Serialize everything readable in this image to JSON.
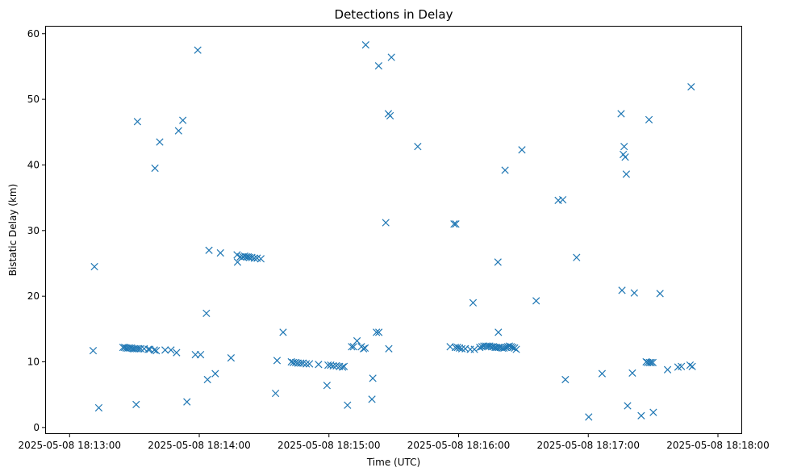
{
  "chart_data": {
    "type": "scatter",
    "title": "Detections in Delay",
    "xlabel": "Time (UTC)",
    "ylabel": "Bistatic Delay (km)",
    "x_unit": "seconds after 2025-05-08 18:12:00",
    "xlim": [
      48.7,
      371.2
    ],
    "ylim": [
      -1.0,
      61.2
    ],
    "x_ticks": [
      {
        "value": 60,
        "label": "2025-05-08 18:13:00"
      },
      {
        "value": 120,
        "label": "2025-05-08 18:14:00"
      },
      {
        "value": 180,
        "label": "2025-05-08 18:15:00"
      },
      {
        "value": 240,
        "label": "2025-05-08 18:16:00"
      },
      {
        "value": 300,
        "label": "2025-05-08 18:17:00"
      },
      {
        "value": 360,
        "label": "2025-05-08 18:18:00"
      }
    ],
    "y_ticks": [
      {
        "value": 0,
        "label": "0"
      },
      {
        "value": 10,
        "label": "10"
      },
      {
        "value": 20,
        "label": "20"
      },
      {
        "value": 30,
        "label": "30"
      },
      {
        "value": 40,
        "label": "40"
      },
      {
        "value": 50,
        "label": "50"
      },
      {
        "value": 60,
        "label": "60"
      }
    ],
    "marker": "x",
    "color": "#1f77b4",
    "points": [
      [
        70.9,
        11.7
      ],
      [
        71.5,
        24.5
      ],
      [
        73.5,
        3.0
      ],
      [
        84.7,
        12.2
      ],
      [
        85.5,
        12.2
      ],
      [
        86.2,
        12.1
      ],
      [
        87.0,
        12.1
      ],
      [
        87.8,
        12.1
      ],
      [
        88.6,
        12.1
      ],
      [
        89.4,
        12.0
      ],
      [
        90.2,
        12.0
      ],
      [
        91.1,
        12.0
      ],
      [
        92.0,
        12.0
      ],
      [
        92.9,
        12.0
      ],
      [
        94.5,
        12.0
      ],
      [
        96.4,
        11.9
      ],
      [
        97.1,
        11.9
      ],
      [
        99.2,
        11.8
      ],
      [
        100.1,
        11.7
      ],
      [
        90.8,
        3.5
      ],
      [
        91.4,
        46.6
      ],
      [
        99.5,
        39.5
      ],
      [
        101.7,
        43.5
      ],
      [
        104.2,
        11.8
      ],
      [
        106.9,
        11.8
      ],
      [
        109.5,
        11.4
      ],
      [
        110.4,
        45.2
      ],
      [
        112.4,
        46.8
      ],
      [
        114.3,
        3.9
      ],
      [
        118.2,
        11.1
      ],
      [
        120.6,
        11.1
      ],
      [
        119.3,
        57.5
      ],
      [
        123.3,
        17.4
      ],
      [
        124.5,
        27.0
      ],
      [
        123.8,
        7.3
      ],
      [
        127.4,
        8.2
      ],
      [
        129.8,
        26.6
      ],
      [
        134.7,
        10.6
      ],
      [
        137.5,
        26.3
      ],
      [
        137.7,
        25.2
      ],
      [
        139.0,
        26.0
      ],
      [
        140.2,
        26.0
      ],
      [
        141.0,
        26.1
      ],
      [
        141.8,
        26.0
      ],
      [
        142.6,
        26.0
      ],
      [
        143.3,
        25.9
      ],
      [
        144.3,
        25.9
      ],
      [
        145.5,
        25.8
      ],
      [
        146.8,
        25.8
      ],
      [
        148.5,
        25.7
      ],
      [
        155.3,
        5.2
      ],
      [
        156.0,
        10.2
      ],
      [
        158.8,
        14.5
      ],
      [
        162.6,
        10.0
      ],
      [
        163.5,
        9.9
      ],
      [
        164.6,
        9.9
      ],
      [
        165.7,
        9.8
      ],
      [
        166.9,
        9.8
      ],
      [
        168.0,
        9.8
      ],
      [
        169.5,
        9.7
      ],
      [
        171.0,
        9.7
      ],
      [
        175.2,
        9.6
      ],
      [
        179.1,
        6.4
      ],
      [
        179.6,
        9.5
      ],
      [
        180.8,
        9.5
      ],
      [
        182.0,
        9.4
      ],
      [
        183.4,
        9.4
      ],
      [
        184.9,
        9.3
      ],
      [
        186.3,
        9.2
      ],
      [
        187.0,
        9.3
      ],
      [
        188.6,
        3.4
      ],
      [
        190.5,
        12.3
      ],
      [
        191.4,
        12.3
      ],
      [
        193.0,
        13.2
      ],
      [
        195.0,
        12.3
      ],
      [
        196.0,
        12.0
      ],
      [
        196.7,
        12.1
      ],
      [
        197.0,
        58.3
      ],
      [
        199.9,
        4.3
      ],
      [
        200.3,
        7.5
      ],
      [
        202.0,
        14.5
      ],
      [
        203.1,
        14.5
      ],
      [
        203.0,
        55.1
      ],
      [
        206.3,
        31.2
      ],
      [
        207.5,
        47.8
      ],
      [
        208.3,
        47.5
      ],
      [
        208.9,
        56.4
      ],
      [
        207.7,
        12.0
      ],
      [
        221.1,
        42.8
      ],
      [
        236.1,
        12.3
      ],
      [
        237.9,
        31.0
      ],
      [
        238.7,
        31.0
      ],
      [
        238.5,
        12.2
      ],
      [
        239.5,
        12.2
      ],
      [
        240.4,
        12.1
      ],
      [
        241.5,
        12.0
      ],
      [
        243.1,
        12.0
      ],
      [
        245.4,
        11.9
      ],
      [
        246.7,
        19.0
      ],
      [
        247.3,
        11.9
      ],
      [
        249.8,
        12.2
      ],
      [
        250.8,
        12.3
      ],
      [
        251.7,
        12.4
      ],
      [
        252.7,
        12.4
      ],
      [
        253.6,
        12.4
      ],
      [
        254.4,
        12.4
      ],
      [
        255.3,
        12.3
      ],
      [
        256.1,
        12.3
      ],
      [
        256.9,
        12.2
      ],
      [
        257.6,
        12.2
      ],
      [
        258.2,
        25.2
      ],
      [
        258.4,
        14.5
      ],
      [
        258.5,
        12.2
      ],
      [
        259.3,
        12.2
      ],
      [
        260.2,
        12.1
      ],
      [
        261.0,
        12.1
      ],
      [
        261.9,
        12.2
      ],
      [
        262.7,
        12.3
      ],
      [
        263.5,
        12.4
      ],
      [
        264.3,
        12.3
      ],
      [
        265.1,
        12.2
      ],
      [
        265.9,
        12.1
      ],
      [
        266.7,
        11.9
      ],
      [
        261.5,
        39.2
      ],
      [
        269.3,
        42.3
      ],
      [
        275.9,
        19.3
      ],
      [
        286.1,
        34.6
      ],
      [
        288.2,
        34.7
      ],
      [
        289.4,
        7.3
      ],
      [
        294.6,
        25.9
      ],
      [
        300.2,
        1.6
      ],
      [
        306.4,
        8.2
      ],
      [
        315.2,
        47.8
      ],
      [
        315.6,
        20.9
      ],
      [
        316.2,
        41.6
      ],
      [
        316.6,
        42.8
      ],
      [
        317.1,
        41.2
      ],
      [
        317.6,
        38.6
      ],
      [
        318.2,
        3.3
      ],
      [
        320.4,
        8.3
      ],
      [
        321.3,
        20.5
      ],
      [
        324.5,
        1.8
      ],
      [
        326.8,
        10.0
      ],
      [
        327.5,
        9.9
      ],
      [
        328.1,
        46.9
      ],
      [
        328.4,
        9.9
      ],
      [
        329.1,
        9.9
      ],
      [
        329.9,
        9.9
      ],
      [
        330.1,
        2.3
      ],
      [
        333.2,
        20.4
      ],
      [
        336.7,
        8.8
      ],
      [
        341.5,
        9.2
      ],
      [
        343.1,
        9.3
      ],
      [
        347.1,
        9.5
      ],
      [
        348.1,
        9.3
      ],
      [
        347.6,
        51.9
      ]
    ]
  }
}
